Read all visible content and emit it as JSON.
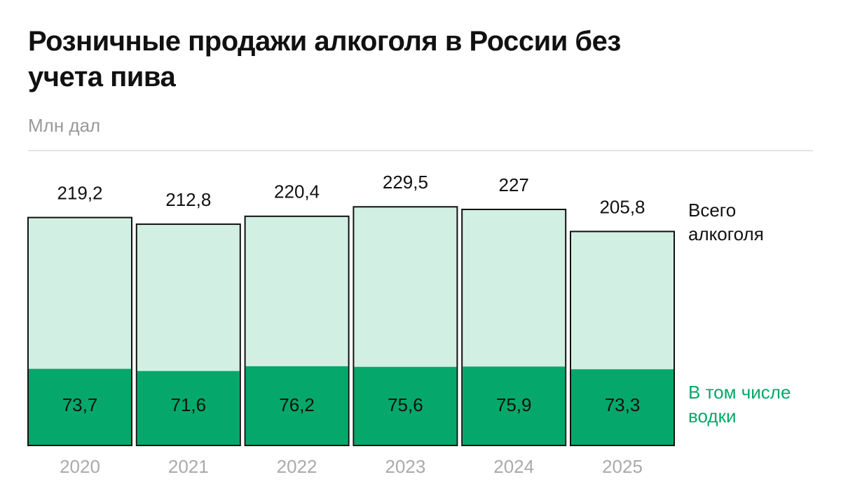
{
  "chart_data": {
    "type": "bar",
    "title": "Розничные продажи алкоголя в России без учета пива",
    "subtitle": "Млн дал",
    "categories": [
      "2020",
      "2021",
      "2022",
      "2023",
      "2024",
      "2025"
    ],
    "series": [
      {
        "name": "Всего алкоголя",
        "color": "#d2efe4",
        "values": [
          219.2,
          212.8,
          220.4,
          229.5,
          227,
          205.8
        ],
        "value_labels": [
          "219,2",
          "212,8",
          "220,4",
          "229,5",
          "227",
          "205,8"
        ]
      },
      {
        "name": "В том числе водки",
        "color": "#05a86a",
        "values": [
          73.7,
          71.6,
          76.2,
          75.6,
          75.9,
          73.3
        ],
        "value_labels": [
          "73,7",
          "71,6",
          "76,2",
          "75,6",
          "75,9",
          "73,3"
        ]
      }
    ],
    "ylim": [
      0,
      260
    ]
  }
}
